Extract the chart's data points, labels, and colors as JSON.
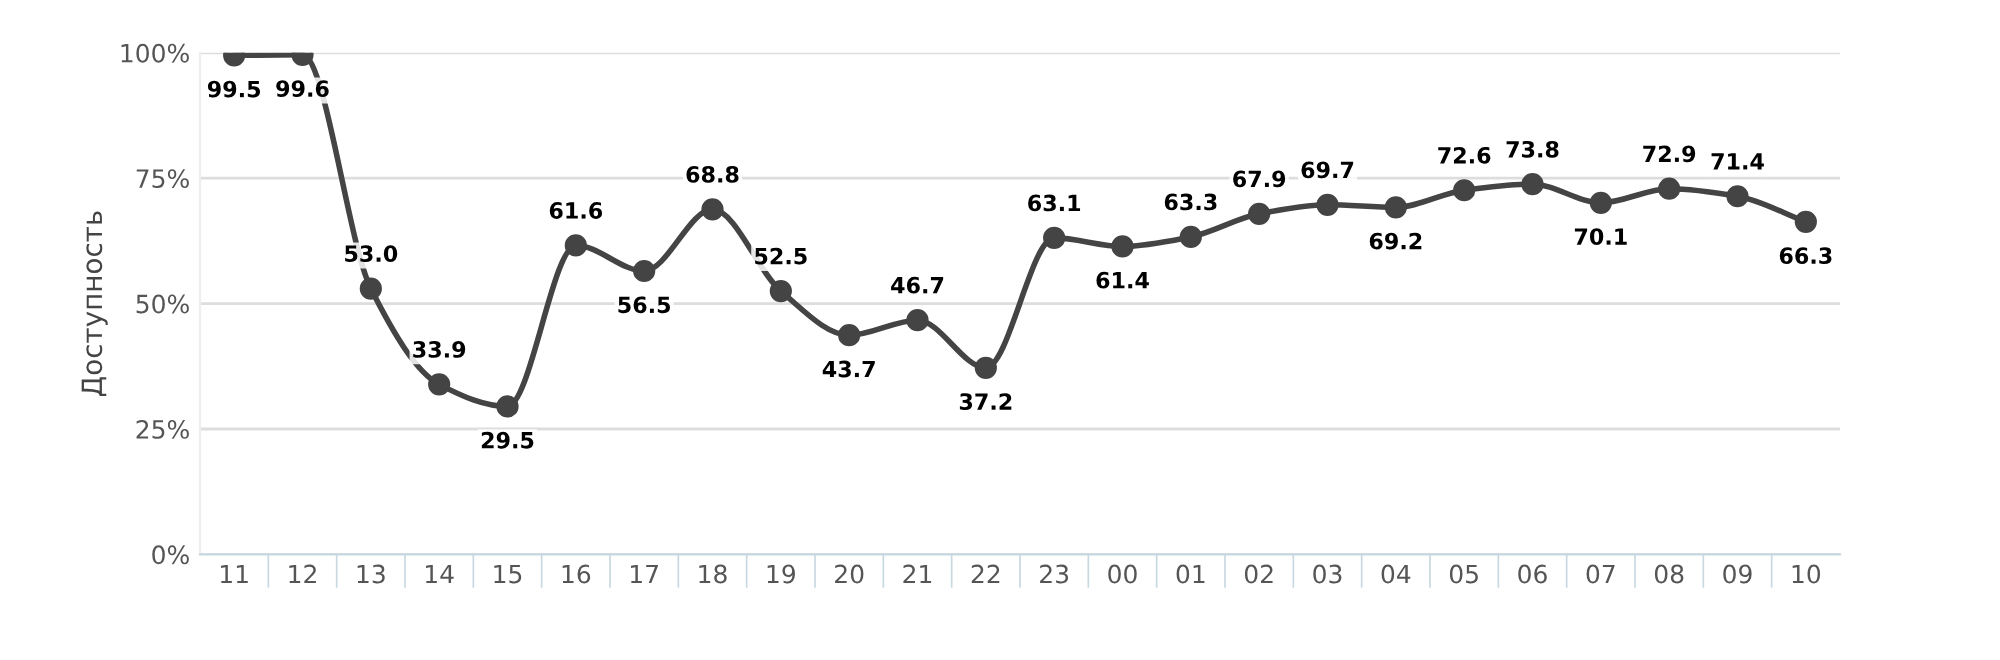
{
  "chart_data": {
    "type": "line",
    "ylabel": "Доступность",
    "categories": [
      "11",
      "12",
      "13",
      "14",
      "15",
      "16",
      "17",
      "18",
      "19",
      "20",
      "21",
      "22",
      "23",
      "00",
      "01",
      "02",
      "03",
      "04",
      "05",
      "06",
      "07",
      "08",
      "09",
      "10"
    ],
    "series": [
      {
        "color": "#444444",
        "values": [
          99.5,
          99.6,
          53.0,
          33.9,
          29.5,
          61.6,
          56.5,
          68.8,
          52.5,
          43.7,
          46.7,
          37.2,
          63.1,
          61.4,
          63.3,
          67.9,
          69.7,
          69.2,
          72.6,
          73.8,
          70.1,
          72.9,
          71.4,
          66.3
        ],
        "value_labels": [
          "99.5",
          "99.6",
          "53.0",
          "33.9",
          "29.5",
          "61.6",
          "56.5",
          "68.8",
          "52.5",
          "43.7",
          "46.7",
          "37.2",
          "63.1",
          "61.4",
          "63.3",
          "67.9",
          "69.7",
          "69.2",
          "72.6",
          "73.8",
          "70.1",
          "72.9",
          "71.4",
          "66.3"
        ]
      }
    ],
    "ylim": [
      0,
      100
    ],
    "yticks": [
      {
        "value": 0,
        "label": "0%"
      },
      {
        "value": 25,
        "label": "25%"
      },
      {
        "value": 50,
        "label": "50%"
      },
      {
        "value": 75,
        "label": "75%"
      },
      {
        "value": 100,
        "label": "100%"
      }
    ],
    "grid": "y",
    "marker": "circle",
    "line_style": "solid",
    "legend": false
  }
}
